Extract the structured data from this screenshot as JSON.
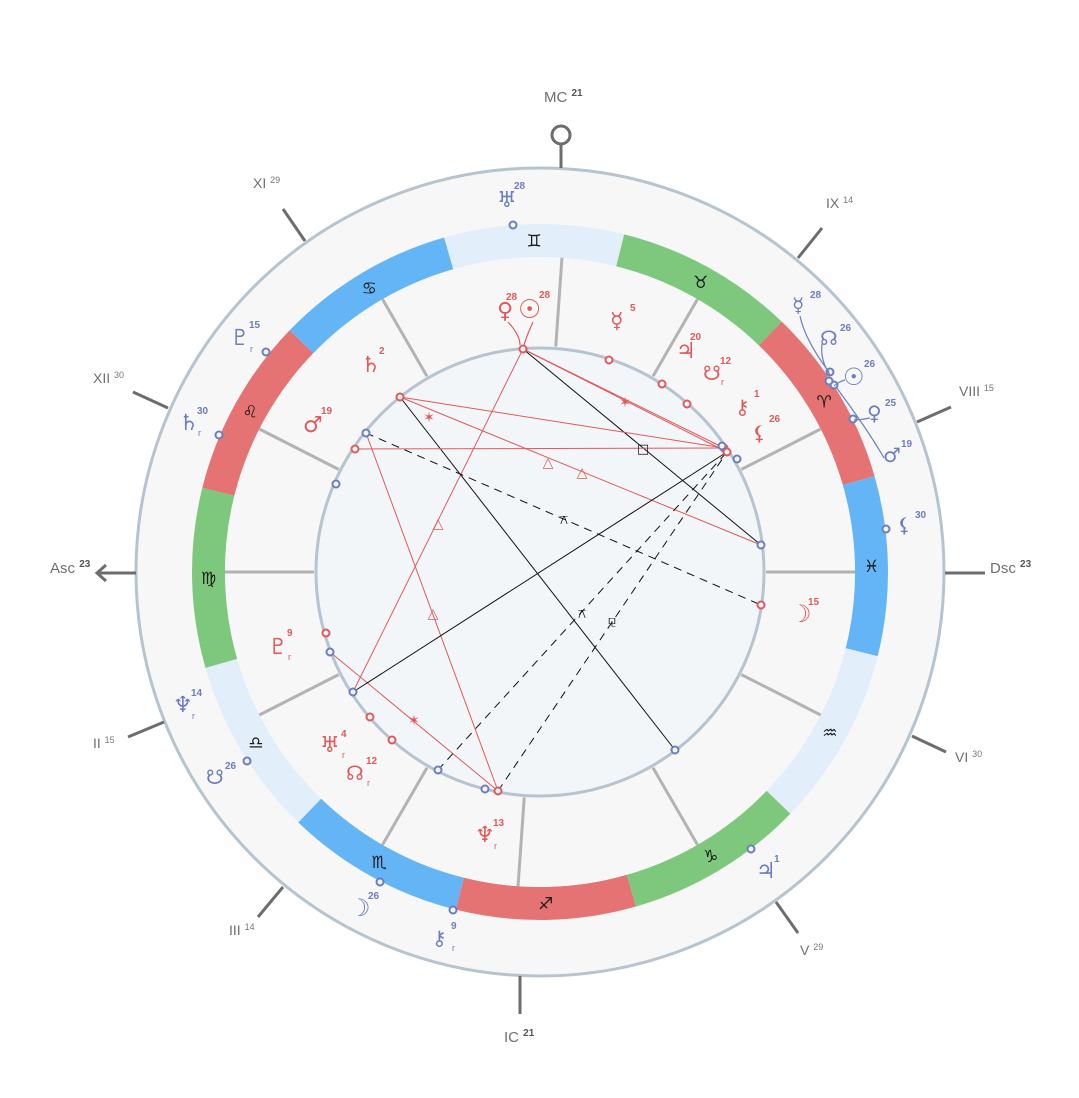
{
  "axes": [
    {
      "id": "mc",
      "label": "MC",
      "degree": "21"
    },
    {
      "id": "ic",
      "label": "IC",
      "degree": "21"
    },
    {
      "id": "asc",
      "label": "Asc",
      "degree": "23"
    },
    {
      "id": "dsc",
      "label": "Dsc",
      "degree": "23"
    }
  ],
  "outer_houses": [
    {
      "label": "XI",
      "degree": "29"
    },
    {
      "label": "XII",
      "degree": "30"
    },
    {
      "label": "II",
      "degree": "15"
    },
    {
      "label": "III",
      "degree": "14"
    },
    {
      "label": "V",
      "degree": "29"
    },
    {
      "label": "VI",
      "degree": "30"
    },
    {
      "label": "VIII",
      "degree": "15"
    },
    {
      "label": "IX",
      "degree": "14"
    }
  ],
  "zodiac": [
    {
      "sign": "gemini",
      "glyph": "♊",
      "color": "#e2eefa"
    },
    {
      "sign": "taurus",
      "glyph": "♉",
      "color": "#7ec87e"
    },
    {
      "sign": "aries",
      "glyph": "♈",
      "color": "#e57373"
    },
    {
      "sign": "pisces",
      "glyph": "♓",
      "color": "#64b5f6"
    },
    {
      "sign": "aquarius",
      "glyph": "♒",
      "color": "#e2eefa"
    },
    {
      "sign": "capricorn",
      "glyph": "♑",
      "color": "#7ec87e"
    },
    {
      "sign": "sagittarius",
      "glyph": "♐",
      "color": "#e57373"
    },
    {
      "sign": "scorpio",
      "glyph": "♏",
      "color": "#64b5f6"
    },
    {
      "sign": "libra",
      "glyph": "♎",
      "color": "#e2eefa"
    },
    {
      "sign": "virgo",
      "glyph": "♍",
      "color": "#7ec87e"
    },
    {
      "sign": "leo",
      "glyph": "♌",
      "color": "#e57373"
    },
    {
      "sign": "cancer",
      "glyph": "♋",
      "color": "#64b5f6"
    }
  ],
  "natal_planets": [
    {
      "name": "venus",
      "glyph": "♀",
      "degree": "28",
      "retro": false
    },
    {
      "name": "sun",
      "glyph": "☉",
      "degree": "28",
      "retro": false
    },
    {
      "name": "mercury",
      "glyph": "☿",
      "degree": "5",
      "retro": false
    },
    {
      "name": "jupiter",
      "glyph": "♃",
      "degree": "20",
      "retro": false
    },
    {
      "name": "south-node",
      "glyph": "☋",
      "degree": "12",
      "retro": true
    },
    {
      "name": "chiron",
      "glyph": "⚷",
      "degree": "1",
      "retro": false
    },
    {
      "name": "lilith",
      "glyph": "⚸",
      "degree": "26",
      "retro": false
    },
    {
      "name": "saturn",
      "glyph": "♄",
      "degree": "2",
      "retro": false
    },
    {
      "name": "mars",
      "glyph": "♂",
      "degree": "19",
      "retro": false
    },
    {
      "name": "moon",
      "glyph": "☽",
      "degree": "15",
      "retro": false
    },
    {
      "name": "pluto",
      "glyph": "♇",
      "degree": "9",
      "retro": true
    },
    {
      "name": "uranus",
      "glyph": "♅",
      "degree": "4",
      "retro": true
    },
    {
      "name": "north-node",
      "glyph": "☊",
      "degree": "12",
      "retro": true
    },
    {
      "name": "neptune",
      "glyph": "♆",
      "degree": "13",
      "retro": true
    }
  ],
  "transit_planets": [
    {
      "name": "uranus",
      "glyph": "♅",
      "degree": "28",
      "retro": false
    },
    {
      "name": "mercury",
      "glyph": "☿",
      "degree": "28",
      "retro": false
    },
    {
      "name": "north-node",
      "glyph": "☊",
      "degree": "26",
      "retro": false
    },
    {
      "name": "sun",
      "glyph": "☉",
      "degree": "26",
      "retro": false
    },
    {
      "name": "venus",
      "glyph": "♀",
      "degree": "25",
      "retro": false
    },
    {
      "name": "mars",
      "glyph": "♂",
      "degree": "19",
      "retro": false
    },
    {
      "name": "lilith",
      "glyph": "⚸",
      "degree": "30",
      "retro": false
    },
    {
      "name": "jupiter",
      "glyph": "♃",
      "degree": "1",
      "retro": false
    },
    {
      "name": "chiron",
      "glyph": "⚷",
      "degree": "9",
      "retro": true
    },
    {
      "name": "moon",
      "glyph": "☽",
      "degree": "26",
      "retro": false
    },
    {
      "name": "south-node",
      "glyph": "☋",
      "degree": "26",
      "retro": false
    },
    {
      "name": "neptune",
      "glyph": "♆",
      "degree": "14",
      "retro": true
    },
    {
      "name": "pluto",
      "glyph": "♇",
      "degree": "15",
      "retro": true
    },
    {
      "name": "saturn",
      "glyph": "♄",
      "degree": "30",
      "retro": true
    }
  ],
  "colors": {
    "natal": "#e05a5a",
    "transit": "#6a7ec0",
    "ring": "#b6c4cf",
    "inner_fill": "#f3f6f9",
    "outer_fill": "#f7f7f7"
  }
}
